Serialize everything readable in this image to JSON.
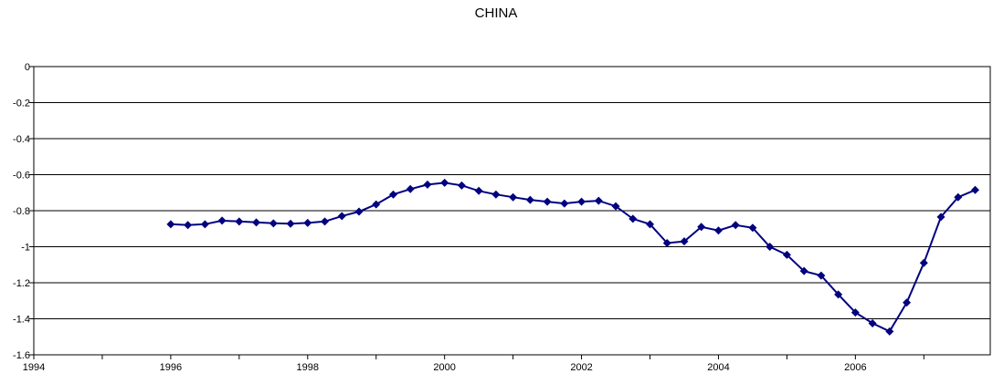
{
  "chart_data": {
    "type": "line",
    "title": "CHINA",
    "xlabel": "",
    "ylabel": "",
    "xlim": [
      1994,
      2007.97
    ],
    "ylim": [
      -1.6,
      0
    ],
    "x_ticks": [
      "1994",
      "1996",
      "1998",
      "2000",
      "2002",
      "2004",
      "2006"
    ],
    "y_ticks": [
      "0",
      "-0.2",
      "-0.4",
      "-0.6",
      "-0.8",
      "-1",
      "-1.2",
      "-1.4",
      "-1.6"
    ],
    "grid": "horizontal",
    "legend": "none",
    "series_color": "#000080",
    "series": [
      {
        "x": [
          1996.0,
          1996.25,
          1996.5,
          1996.75,
          1997.0,
          1997.25,
          1997.5,
          1997.75,
          1998.0,
          1998.25,
          1998.5,
          1998.75,
          1999.0,
          1999.25,
          1999.5,
          1999.75,
          2000.0,
          2000.25,
          2000.5,
          2000.75,
          2001.0,
          2001.25,
          2001.5,
          2001.75,
          2002.0,
          2002.25,
          2002.5,
          2002.75,
          2003.0,
          2003.25,
          2003.5,
          2003.75,
          2004.0,
          2004.25,
          2004.5,
          2004.75,
          2005.0,
          2005.25,
          2005.5,
          2005.75,
          2006.0,
          2006.25,
          2006.5,
          2006.75,
          2007.0,
          2007.25,
          2007.5,
          2007.75
        ],
        "y": [
          -0.875,
          -0.88,
          -0.875,
          -0.855,
          -0.86,
          -0.865,
          -0.87,
          -0.872,
          -0.868,
          -0.86,
          -0.83,
          -0.805,
          -0.765,
          -0.71,
          -0.68,
          -0.655,
          -0.645,
          -0.66,
          -0.69,
          -0.71,
          -0.725,
          -0.74,
          -0.75,
          -0.76,
          -0.75,
          -0.745,
          -0.775,
          -0.845,
          -0.875,
          -0.98,
          -0.97,
          -0.89,
          -0.91,
          -0.88,
          -0.895,
          -1.0,
          -1.045,
          -1.135,
          -1.16,
          -1.265,
          -1.365,
          -1.425,
          -1.47,
          -1.31,
          -1.09,
          -0.835,
          -0.725,
          -0.685
        ]
      }
    ]
  }
}
